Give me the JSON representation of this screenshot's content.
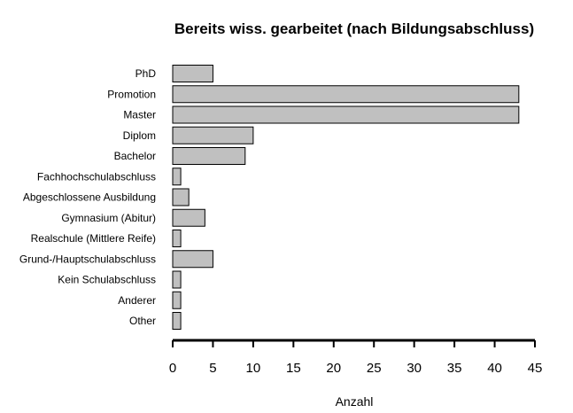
{
  "chart_data": {
    "type": "bar",
    "orientation": "horizontal",
    "title": "Bereits wiss. gearbeitet (nach Bildungsabschluss)",
    "xlabel": "Anzahl",
    "ylabel": "",
    "categories": [
      "PhD",
      "Promotion",
      "Master",
      "Diplom",
      "Bachelor",
      "Fachhochschulabschluss",
      "Abgeschlossene Ausbildung",
      "Gymnasium (Abitur)",
      "Realschule (Mittlere Reife)",
      "Grund-/Hauptschulabschluss",
      "Kein Schulabschluss",
      "Anderer",
      "Other"
    ],
    "values": [
      5,
      43,
      43,
      10,
      9,
      1,
      2,
      4,
      1,
      5,
      1,
      1,
      1
    ],
    "xlim": [
      0,
      45
    ],
    "xticks": [
      "0",
      "5",
      "10",
      "15",
      "20",
      "25",
      "30",
      "35",
      "40",
      "45"
    ],
    "bar_color": "#c0c0c0",
    "bar_border_color": "#000000",
    "grid": false
  }
}
